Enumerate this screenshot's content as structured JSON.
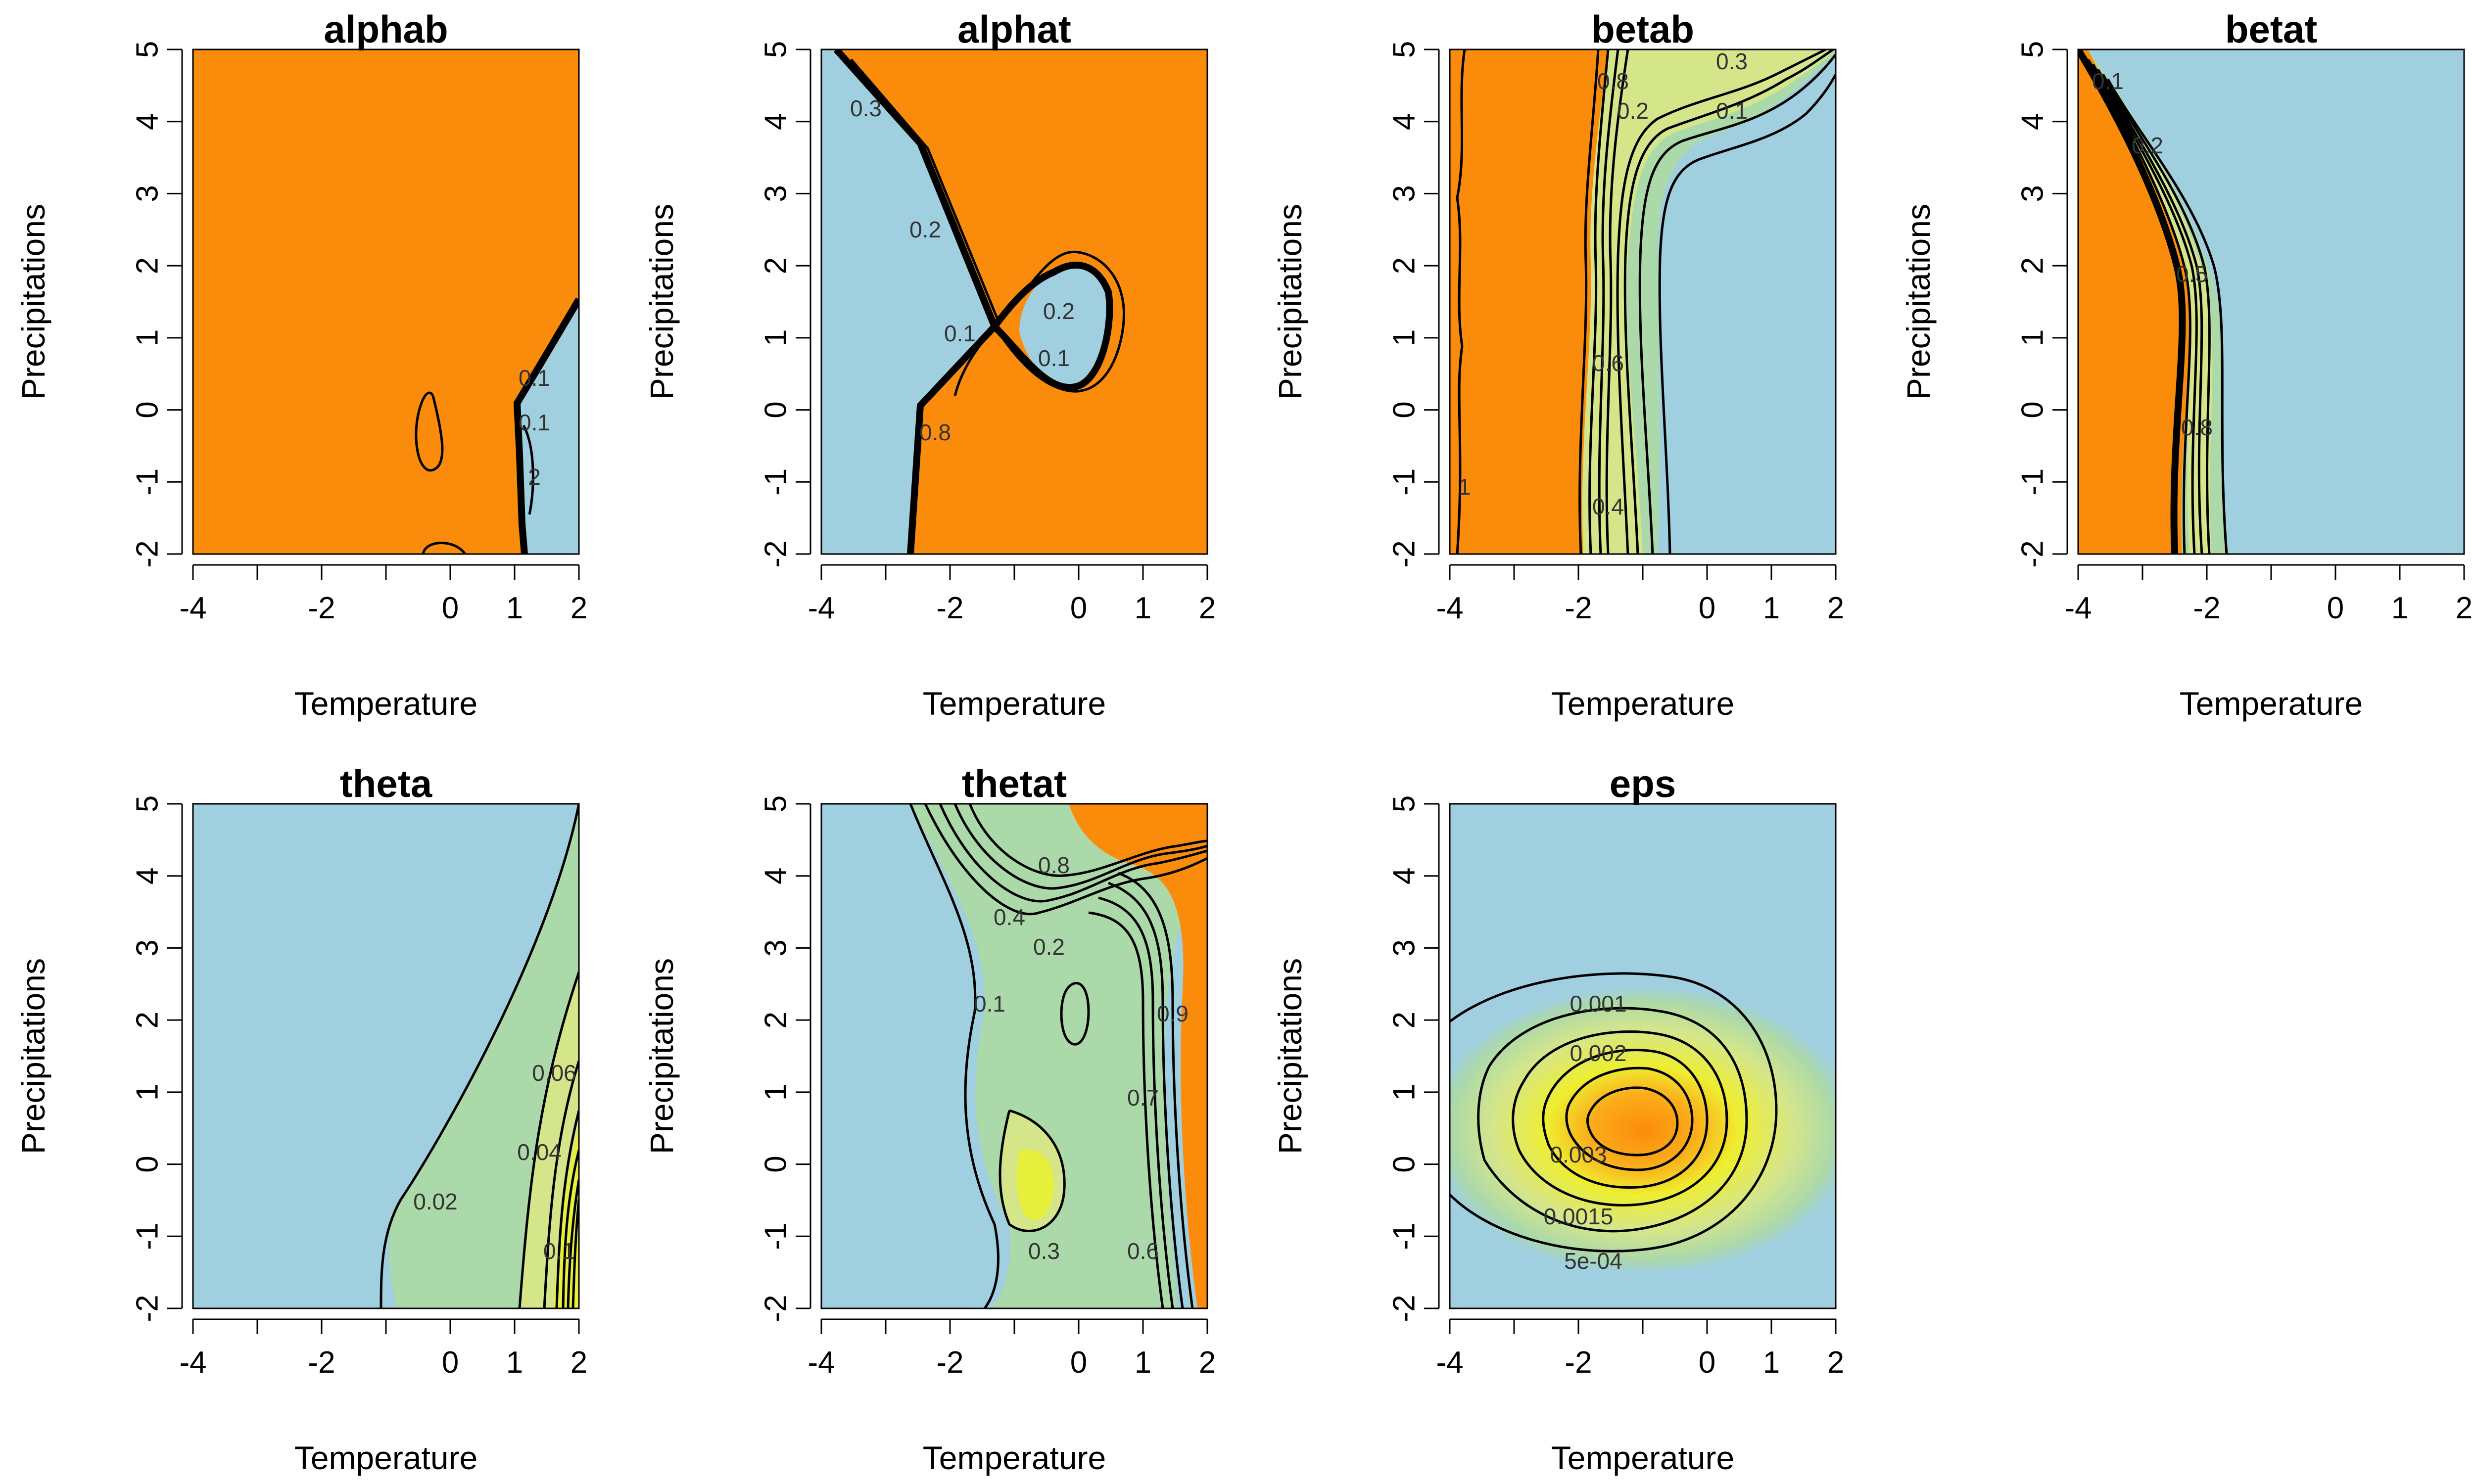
{
  "colors": {
    "low": "#a0cfdf",
    "high": "#fb8c0b",
    "mid_green": "#acd9a9",
    "mid_yellowgreen": "#d5e68a",
    "mid_yellow": "#e6f03a"
  },
  "chart_data": [
    {
      "type": "heatmap",
      "title": "alphab",
      "xlabel": "Temperature",
      "ylabel": "Precipitations",
      "xlim": [
        -4,
        2
      ],
      "ylim": [
        -2,
        5
      ],
      "xticks": [
        "-4",
        "-2",
        "0",
        "1",
        "2"
      ],
      "yticks": [
        "-2",
        "-1",
        "0",
        "1",
        "2",
        "3",
        "4",
        "5"
      ],
      "contour_labels": [
        "0.1",
        "0.1",
        "2"
      ]
    },
    {
      "type": "heatmap",
      "title": "alphat",
      "xlabel": "Temperature",
      "ylabel": "Precipitations",
      "xlim": [
        -4,
        2
      ],
      "ylim": [
        -2,
        5
      ],
      "xticks": [
        "-4",
        "-2",
        "0",
        "1",
        "2"
      ],
      "yticks": [
        "-2",
        "-1",
        "0",
        "1",
        "2",
        "3",
        "4",
        "5"
      ],
      "contour_labels": [
        "0.3",
        "0.2",
        "0.1",
        "0.2",
        "0.1",
        "0.8"
      ]
    },
    {
      "type": "heatmap",
      "title": "betab",
      "xlabel": "Temperature",
      "ylabel": "Precipitations",
      "xlim": [
        -4,
        2
      ],
      "ylim": [
        -2,
        5
      ],
      "xticks": [
        "-4",
        "-2",
        "0",
        "1",
        "2"
      ],
      "yticks": [
        "-2",
        "-1",
        "0",
        "1",
        "2",
        "3",
        "4",
        "5"
      ],
      "contour_labels": [
        "0.8",
        "0.3",
        "0.2",
        "0.1",
        "1",
        "0.6",
        "0.4"
      ]
    },
    {
      "type": "heatmap",
      "title": "betat",
      "xlabel": "Temperature",
      "ylabel": "Precipitations",
      "xlim": [
        -4,
        2
      ],
      "ylim": [
        -2,
        5
      ],
      "xticks": [
        "-4",
        "-2",
        "0",
        "1",
        "2"
      ],
      "yticks": [
        "-2",
        "-1",
        "0",
        "1",
        "2",
        "3",
        "4",
        "5"
      ],
      "contour_labels": [
        "0.1",
        "0.2",
        "0.5",
        "0.8"
      ]
    },
    {
      "type": "heatmap",
      "title": "theta",
      "xlabel": "Temperature",
      "ylabel": "Precipitations",
      "xlim": [
        -4,
        2
      ],
      "ylim": [
        -2,
        5
      ],
      "xticks": [
        "-4",
        "-2",
        "0",
        "1",
        "2"
      ],
      "yticks": [
        "-2",
        "-1",
        "0",
        "1",
        "2",
        "3",
        "4",
        "5"
      ],
      "contour_labels": [
        "0.02",
        "0.04",
        "0.06",
        "0.1"
      ]
    },
    {
      "type": "heatmap",
      "title": "thetat",
      "xlabel": "Temperature",
      "ylabel": "Precipitations",
      "xlim": [
        -4,
        2
      ],
      "ylim": [
        -2,
        5
      ],
      "xticks": [
        "-4",
        "-2",
        "0",
        "1",
        "2"
      ],
      "yticks": [
        "-2",
        "-1",
        "0",
        "1",
        "2",
        "3",
        "4",
        "5"
      ],
      "contour_labels": [
        "0.8",
        "0.4",
        "0.2",
        "0.1",
        "0.9",
        "0.7",
        "0.3",
        "0.6"
      ]
    },
    {
      "type": "heatmap",
      "title": "eps",
      "xlabel": "Temperature",
      "ylabel": "Precipitations",
      "xlim": [
        -4,
        2
      ],
      "ylim": [
        -2,
        5
      ],
      "xticks": [
        "-4",
        "-2",
        "0",
        "1",
        "2"
      ],
      "yticks": [
        "-2",
        "-1",
        "0",
        "1",
        "2",
        "3",
        "4",
        "5"
      ],
      "contour_labels": [
        "0.001",
        "0.002",
        "0.003",
        "0.0015",
        "5e-04"
      ]
    }
  ]
}
